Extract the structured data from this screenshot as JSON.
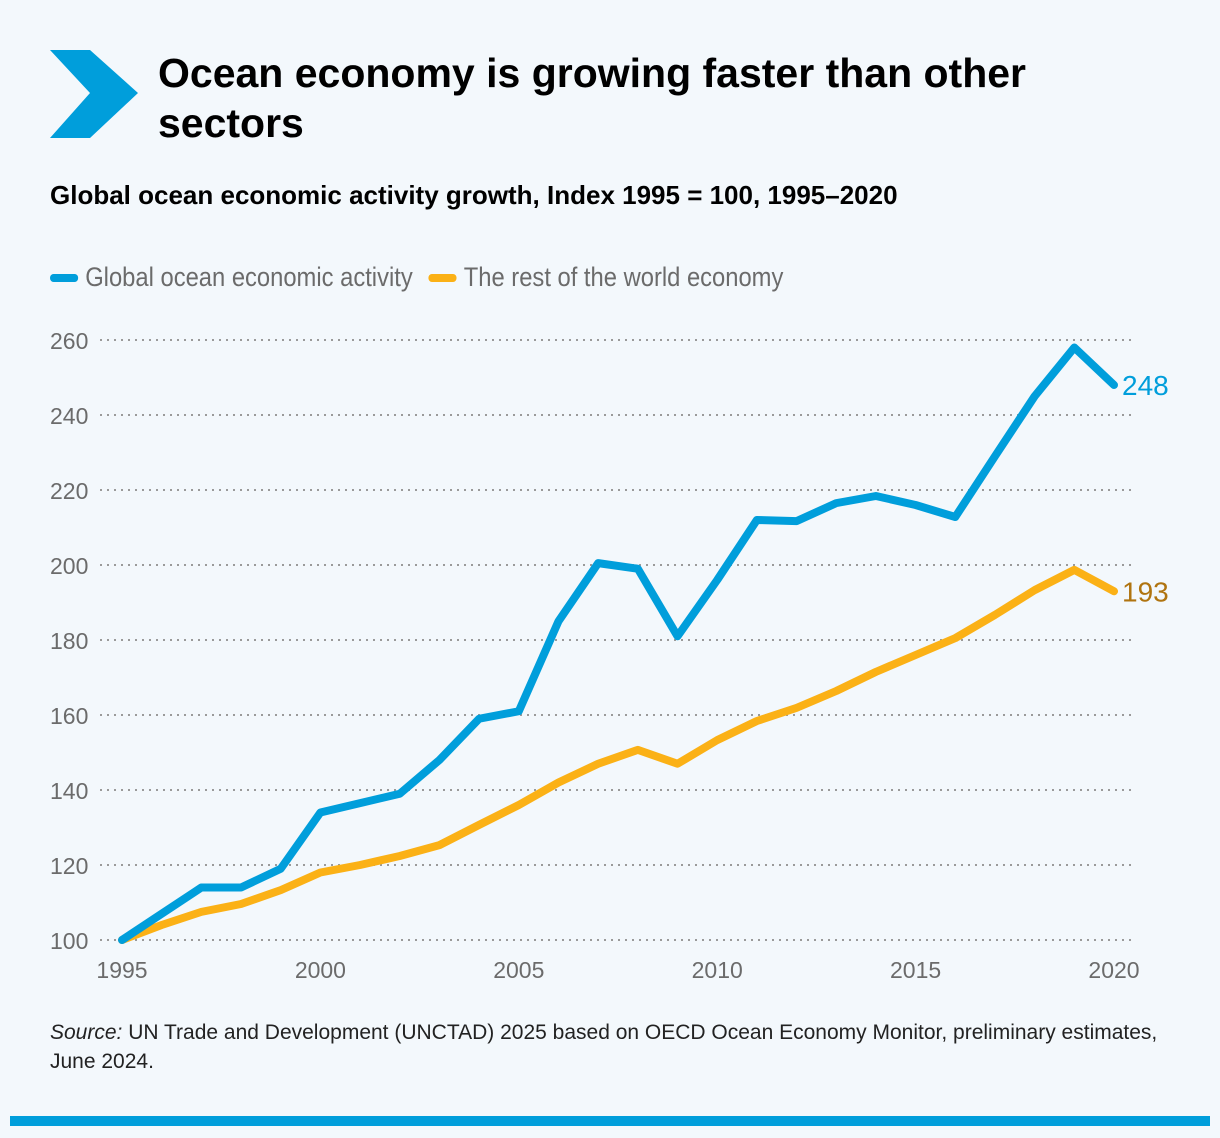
{
  "title": "Ocean economy is growing faster than other sectors",
  "subtitle": "Global ocean economic activity growth, Index 1995 = 100, 1995–2020",
  "source_label": "Source:",
  "source_text": " UN Trade and Development (UNCTAD) 2025 based on OECD Ocean Economy Monitor, preliminary estimates, June 2024.",
  "colors": {
    "accent": "#009edb",
    "ocean": "#009edb",
    "rest": "#fbb116",
    "rest_label": "#b07410"
  },
  "chart_data": {
    "type": "line",
    "x": [
      1995,
      1996,
      1997,
      1998,
      1999,
      2000,
      2001,
      2002,
      2003,
      2004,
      2005,
      2006,
      2007,
      2008,
      2009,
      2010,
      2011,
      2012,
      2013,
      2014,
      2015,
      2016,
      2017,
      2018,
      2019,
      2020
    ],
    "series": [
      {
        "name": "Global ocean economic activity",
        "color": "#009edb",
        "end_label": "248",
        "values": [
          100,
          107,
          114,
          114,
          119,
          134,
          136.5,
          139,
          148,
          159,
          161,
          185,
          200.5,
          199,
          181,
          196,
          212,
          211.7,
          216.5,
          218.4,
          216,
          212.8,
          229,
          245,
          258,
          248
        ]
      },
      {
        "name": "The rest of the world economy",
        "color": "#fbb116",
        "end_label": "193",
        "values": [
          100,
          104,
          107.5,
          109.6,
          113.3,
          118,
          120,
          122.4,
          125.3,
          130.7,
          136,
          142,
          147,
          150.7,
          147,
          153.3,
          158.4,
          161.9,
          166.4,
          171.5,
          176,
          180.5,
          186.7,
          193.3,
          198.7,
          193
        ]
      }
    ],
    "ylim": [
      100,
      260
    ],
    "yticks": [
      "100",
      "120",
      "140",
      "160",
      "180",
      "200",
      "220",
      "240",
      "260"
    ],
    "xticks": [
      "1995",
      "2000",
      "2005",
      "2010",
      "2015",
      "2020"
    ],
    "grid": "horizontal dotted",
    "legend": "top-left"
  }
}
